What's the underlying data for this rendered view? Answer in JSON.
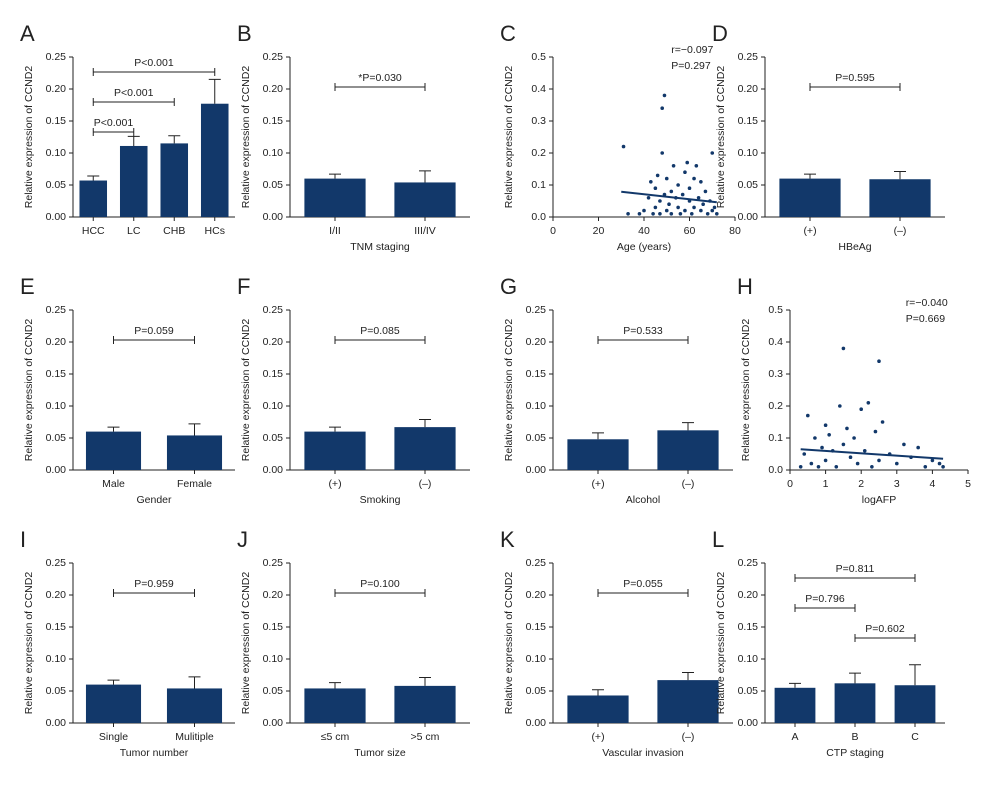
{
  "chart_data": [
    {
      "type": "bar",
      "panel": "A",
      "ylabel": "Relative expression of CCND2",
      "color": "#12386a",
      "categories": [
        "HCC",
        "LC",
        "CHB",
        "HCs"
      ],
      "values": [
        0.057,
        0.111,
        0.115,
        0.177
      ],
      "errors": [
        0.007,
        0.015,
        0.012,
        0.038
      ],
      "ylim": [
        0,
        0.25
      ],
      "yticks": [
        {
          "value": 0,
          "label": "0.00"
        },
        0.05,
        {
          "value": 0.1,
          "label": "0.10"
        },
        0.15,
        {
          "value": 0.2,
          "label": "0.20"
        },
        0.25
      ],
      "brackets": [
        {
          "groups": [
            "HCC",
            "LC"
          ],
          "label": "P<0.001"
        },
        {
          "groups": [
            "HCC",
            "CHB"
          ],
          "label": "P<0.001"
        },
        {
          "groups": [
            "HCC",
            "HCs"
          ],
          "label": "P<0.001"
        }
      ]
    },
    {
      "type": "bar",
      "panel": "B",
      "ylabel": "Relative expression of CCND2",
      "xlabel": "TNM staging",
      "color": "#12386a",
      "categories": [
        "I/II",
        "III/IV"
      ],
      "values": [
        0.06,
        0.054
      ],
      "errors": [
        0.007,
        0.018
      ],
      "ylim": [
        0,
        0.25
      ],
      "yticks": [
        {
          "value": 0,
          "label": "0.00"
        },
        0.05,
        {
          "value": 0.1,
          "label": "0.10"
        },
        0.15,
        {
          "value": 0.2,
          "label": "0.20"
        },
        0.25
      ],
      "brackets": [
        {
          "groups": [
            "I/II",
            "III/IV"
          ],
          "label": "*P=0.030"
        }
      ]
    },
    {
      "type": "scatter",
      "panel": "C",
      "ylabel": "Relative expression of CCND2",
      "xlabel": "Age (years)",
      "color": "#12386a",
      "annotations": [
        "r=−0.097",
        "P=0.297"
      ],
      "x": [
        31,
        33,
        38,
        40,
        42,
        43,
        44,
        45,
        45,
        46,
        47,
        47,
        48,
        48,
        49,
        49,
        50,
        50,
        51,
        52,
        52,
        53,
        54,
        55,
        55,
        56,
        57,
        58,
        58,
        59,
        60,
        60,
        61,
        62,
        62,
        63,
        64,
        65,
        65,
        66,
        67,
        68,
        69,
        70,
        70,
        71,
        72
      ],
      "values": [
        0.22,
        0.01,
        0.01,
        0.02,
        0.06,
        0.11,
        0.01,
        0.09,
        0.03,
        0.13,
        0.05,
        0.01,
        0.34,
        0.2,
        0.38,
        0.07,
        0.02,
        0.12,
        0.04,
        0.08,
        0.01,
        0.16,
        0.06,
        0.03,
        0.1,
        0.01,
        0.07,
        0.14,
        0.02,
        0.17,
        0.05,
        0.09,
        0.01,
        0.12,
        0.03,
        0.16,
        0.06,
        0.02,
        0.11,
        0.04,
        0.08,
        0.01,
        0.05,
        0.2,
        0.02,
        0.03,
        0.01
      ],
      "fit": {
        "x": [
          30,
          72
        ],
        "values": [
          0.079,
          0.046
        ]
      },
      "xlim": [
        0,
        80
      ],
      "xticks": [
        0,
        20,
        40,
        60,
        80
      ],
      "ylim": [
        0,
        0.5
      ],
      "yticks": [
        {
          "value": 0,
          "label": "0.0"
        },
        0.1,
        0.2,
        0.3,
        0.4,
        0.5
      ]
    },
    {
      "type": "bar",
      "panel": "D",
      "ylabel": "Relative expression of CCND2",
      "xlabel": "HBeAg",
      "color": "#12386a",
      "categories": [
        "(+)",
        "(–)"
      ],
      "values": [
        0.06,
        0.059
      ],
      "errors": [
        0.007,
        0.012
      ],
      "ylim": [
        0,
        0.25
      ],
      "yticks": [
        {
          "value": 0,
          "label": "0.00"
        },
        0.05,
        {
          "value": 0.1,
          "label": "0.10"
        },
        0.15,
        {
          "value": 0.2,
          "label": "0.20"
        },
        0.25
      ],
      "brackets": [
        {
          "groups": [
            "(+)",
            "(–)"
          ],
          "label": "P=0.595"
        }
      ]
    },
    {
      "type": "bar",
      "panel": "E",
      "ylabel": "Relative expression of CCND2",
      "xlabel": "Gender",
      "color": "#12386a",
      "categories": [
        "Male",
        "Female"
      ],
      "values": [
        0.06,
        0.054
      ],
      "errors": [
        0.007,
        0.018
      ],
      "ylim": [
        0,
        0.25
      ],
      "yticks": [
        {
          "value": 0,
          "label": "0.00"
        },
        0.05,
        {
          "value": 0.1,
          "label": "0.10"
        },
        0.15,
        {
          "value": 0.2,
          "label": "0.20"
        },
        0.25
      ],
      "brackets": [
        {
          "groups": [
            "Male",
            "Female"
          ],
          "label": "P=0.059"
        }
      ]
    },
    {
      "type": "bar",
      "panel": "F",
      "ylabel": "Relative expression of CCND2",
      "xlabel": "Smoking",
      "color": "#12386a",
      "categories": [
        "(+)",
        "(–)"
      ],
      "values": [
        0.06,
        0.067
      ],
      "errors": [
        0.007,
        0.012
      ],
      "ylim": [
        0,
        0.25
      ],
      "yticks": [
        {
          "value": 0,
          "label": "0.00"
        },
        0.05,
        {
          "value": 0.1,
          "label": "0.10"
        },
        0.15,
        {
          "value": 0.2,
          "label": "0.20"
        },
        0.25
      ],
      "brackets": [
        {
          "groups": [
            "(+)",
            "(–)"
          ],
          "label": "P=0.085"
        }
      ]
    },
    {
      "type": "bar",
      "panel": "G",
      "ylabel": "Relative expression of CCND2",
      "xlabel": "Alcohol",
      "color": "#12386a",
      "categories": [
        "(+)",
        "(–)"
      ],
      "values": [
        0.048,
        0.062
      ],
      "errors": [
        0.01,
        0.012
      ],
      "ylim": [
        0,
        0.25
      ],
      "yticks": [
        {
          "value": 0,
          "label": "0.00"
        },
        0.05,
        {
          "value": 0.1,
          "label": "0.10"
        },
        0.15,
        {
          "value": 0.2,
          "label": "0.20"
        },
        0.25
      ],
      "brackets": [
        {
          "groups": [
            "(+)",
            "(–)"
          ],
          "label": "P=0.533"
        }
      ]
    },
    {
      "type": "scatter",
      "panel": "H",
      "ylabel": "Relative expression of CCND2",
      "xlabel": "logAFP",
      "color": "#12386a",
      "annotations": [
        "r=−0.040",
        "P=0.669"
      ],
      "x": [
        0.3,
        0.4,
        0.5,
        0.6,
        0.7,
        0.8,
        0.9,
        1.0,
        1.0,
        1.1,
        1.2,
        1.3,
        1.4,
        1.5,
        1.5,
        1.6,
        1.7,
        1.8,
        1.9,
        2.0,
        2.1,
        2.2,
        2.3,
        2.4,
        2.5,
        2.5,
        2.6,
        2.8,
        3.0,
        3.2,
        3.4,
        3.6,
        3.8,
        4.0,
        4.2,
        4.3
      ],
      "values": [
        0.01,
        0.05,
        0.17,
        0.02,
        0.1,
        0.01,
        0.07,
        0.14,
        0.03,
        0.11,
        0.06,
        0.01,
        0.2,
        0.38,
        0.08,
        0.13,
        0.04,
        0.1,
        0.02,
        0.19,
        0.06,
        0.21,
        0.01,
        0.12,
        0.34,
        0.03,
        0.15,
        0.05,
        0.02,
        0.08,
        0.04,
        0.07,
        0.01,
        0.03,
        0.02,
        0.01
      ],
      "fit": {
        "x": [
          0.3,
          4.3
        ],
        "values": [
          0.065,
          0.035
        ]
      },
      "xlim": [
        0,
        5
      ],
      "xticks": [
        0,
        1,
        2,
        3,
        4,
        5
      ],
      "ylim": [
        0,
        0.5
      ],
      "yticks": [
        {
          "value": 0,
          "label": "0.0"
        },
        0.1,
        0.2,
        0.3,
        0.4,
        0.5
      ]
    },
    {
      "type": "bar",
      "panel": "I",
      "ylabel": "Relative expression of CCND2",
      "xlabel": "Tumor number",
      "color": "#12386a",
      "categories": [
        "Single",
        "Mulitiple"
      ],
      "values": [
        0.06,
        0.054
      ],
      "errors": [
        0.007,
        0.018
      ],
      "ylim": [
        0,
        0.25
      ],
      "yticks": [
        {
          "value": 0,
          "label": "0.00"
        },
        0.05,
        {
          "value": 0.1,
          "label": "0.10"
        },
        0.15,
        {
          "value": 0.2,
          "label": "0.20"
        },
        0.25
      ],
      "brackets": [
        {
          "groups": [
            "Single",
            "Mulitiple"
          ],
          "label": "P=0.959"
        }
      ]
    },
    {
      "type": "bar",
      "panel": "J",
      "ylabel": "Relative expression of CCND2",
      "xlabel": "Tumor size",
      "color": "#12386a",
      "categories": [
        "≤5 cm",
        ">5 cm"
      ],
      "values": [
        0.054,
        0.058
      ],
      "errors": [
        0.009,
        0.013
      ],
      "ylim": [
        0,
        0.25
      ],
      "yticks": [
        {
          "value": 0,
          "label": "0.00"
        },
        0.05,
        {
          "value": 0.1,
          "label": "0.10"
        },
        0.15,
        {
          "value": 0.2,
          "label": "0.20"
        },
        0.25
      ],
      "brackets": [
        {
          "groups": [
            "≤5 cm",
            ">5 cm"
          ],
          "label": "P=0.100"
        }
      ]
    },
    {
      "type": "bar",
      "panel": "K",
      "ylabel": "Relative expression of CCND2",
      "xlabel": "Vascular invasion",
      "color": "#12386a",
      "categories": [
        "(+)",
        "(–)"
      ],
      "values": [
        0.043,
        0.067
      ],
      "errors": [
        0.009,
        0.012
      ],
      "ylim": [
        0,
        0.25
      ],
      "yticks": [
        {
          "value": 0,
          "label": "0.00"
        },
        0.05,
        {
          "value": 0.1,
          "label": "0.10"
        },
        0.15,
        {
          "value": 0.2,
          "label": "0.20"
        },
        0.25
      ],
      "brackets": [
        {
          "groups": [
            "(+)",
            "(–)"
          ],
          "label": "P=0.055"
        }
      ]
    },
    {
      "type": "bar",
      "panel": "L",
      "ylabel": "Relative expression of CCND2",
      "xlabel": "CTP staging",
      "color": "#12386a",
      "categories": [
        "A",
        "B",
        "C"
      ],
      "values": [
        0.055,
        0.062,
        0.059
      ],
      "errors": [
        0.007,
        0.016,
        0.032
      ],
      "ylim": [
        0,
        0.25
      ],
      "yticks": [
        {
          "value": 0,
          "label": "0.00"
        },
        0.05,
        {
          "value": 0.1,
          "label": "0.10"
        },
        0.15,
        {
          "value": 0.2,
          "label": "0.20"
        },
        0.25
      ],
      "brackets": [
        {
          "groups": [
            "B",
            "C"
          ],
          "label": "P=0.602"
        },
        {
          "groups": [
            "A",
            "B"
          ],
          "label": "P=0.796"
        },
        {
          "groups": [
            "A",
            "C"
          ],
          "label": "P=0.811"
        }
      ]
    }
  ]
}
